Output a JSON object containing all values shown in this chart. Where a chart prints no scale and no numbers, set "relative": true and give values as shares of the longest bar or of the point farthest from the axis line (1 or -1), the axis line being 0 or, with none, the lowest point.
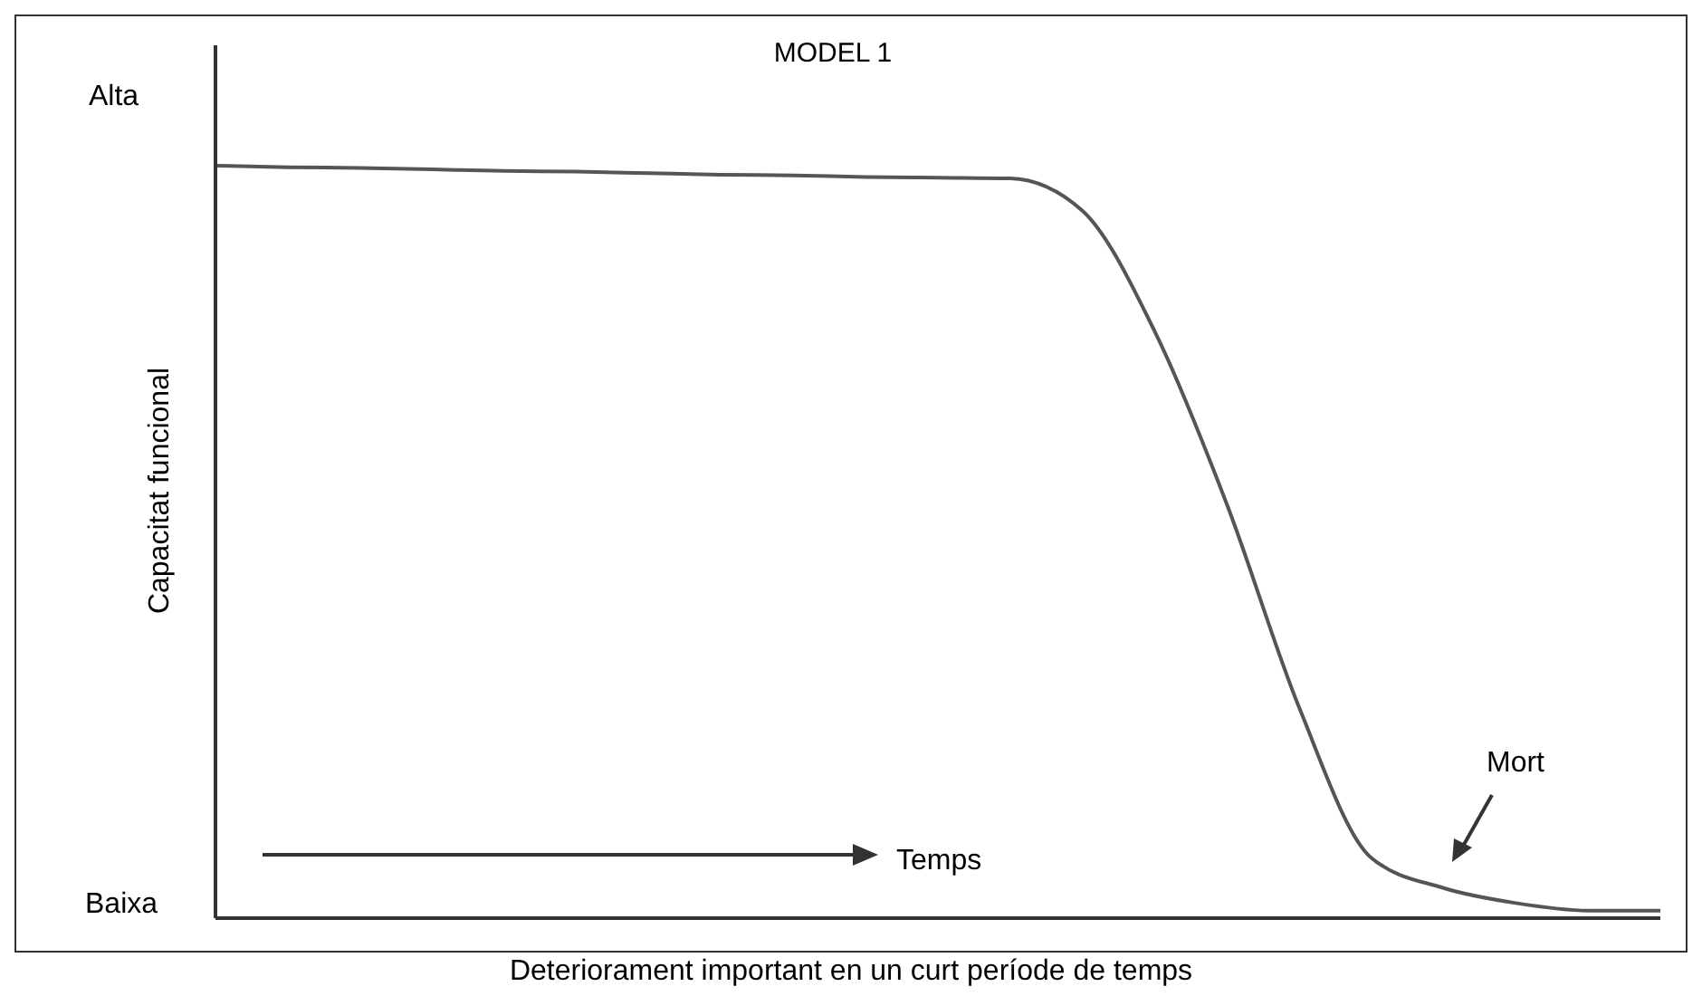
{
  "chart_data": {
    "type": "line",
    "title": "MODEL 1",
    "xlabel": "Deteriorament important en un curt període de temps",
    "ylabel": "Capacitat funcional",
    "relative": true,
    "categories": [
      null,
      null,
      null,
      null,
      null,
      null,
      null,
      null,
      null,
      null,
      null,
      null,
      null,
      null,
      null,
      null,
      null,
      null,
      null,
      null,
      null
    ],
    "series": [
      {
        "color": "#555555",
        "values": [
          1,
          0.998,
          0.997,
          0.995,
          0.993,
          0.992,
          0.99,
          0.988,
          0.987,
          0.985,
          0.984,
          0.983,
          0.94,
          0.78,
          0.55,
          0.28,
          0.08,
          0.04,
          0.02,
          0.01,
          0.01
        ]
      }
    ],
    "annotations": [
      "Alta",
      "Baixa",
      "Temps",
      "Mort"
    ],
    "grid": false,
    "legend": false,
    "marker": "none",
    "line_style": "solid"
  }
}
